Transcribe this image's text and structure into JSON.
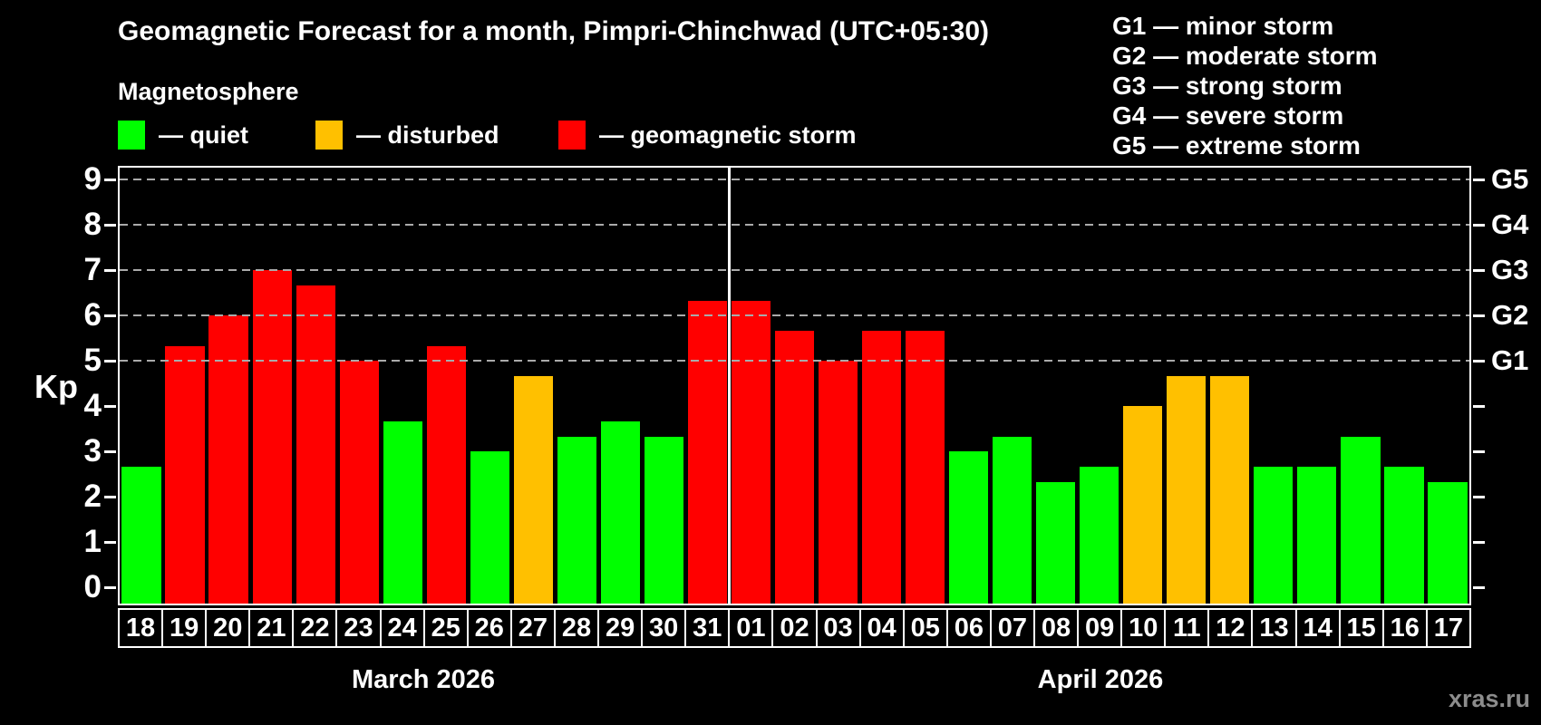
{
  "title": "Geomagnetic Forecast for a month, Pimpri-Chinchwad (UTC+05:30)",
  "subtitle": "Magnetosphere",
  "bar_legend": {
    "items": [
      {
        "status": "quiet",
        "label": "— quiet",
        "color": "#00ff00"
      },
      {
        "status": "disturbed",
        "label": "— disturbed",
        "color": "#ffc000"
      },
      {
        "status": "storm",
        "label": "— geomagnetic storm",
        "color": "#ff0000"
      }
    ]
  },
  "g_legend": {
    "items": [
      {
        "code": "G1",
        "label": "G1 — minor storm"
      },
      {
        "code": "G2",
        "label": "G2 — moderate storm"
      },
      {
        "code": "G3",
        "label": "G3 — strong storm"
      },
      {
        "code": "G4",
        "label": "G4 — severe storm"
      },
      {
        "code": "G5",
        "label": "G5 — extreme storm"
      }
    ]
  },
  "axis": {
    "y_label": "Kp",
    "y_ticks": [
      0,
      1,
      2,
      3,
      4,
      5,
      6,
      7,
      8,
      9
    ],
    "gridlines_kp": [
      5,
      6,
      7,
      8,
      9
    ],
    "right_labels": [
      {
        "kp": 5,
        "label": "G1"
      },
      {
        "kp": 6,
        "label": "G2"
      },
      {
        "kp": 7,
        "label": "G3"
      },
      {
        "kp": 8,
        "label": "G4"
      },
      {
        "kp": 9,
        "label": "G5"
      }
    ]
  },
  "months": [
    {
      "label": "March 2026",
      "days": 14
    },
    {
      "label": "April 2026",
      "days": 17
    }
  ],
  "watermark": "xras.ru",
  "colors": {
    "quiet": "#00ff00",
    "disturbed": "#ffc000",
    "storm": "#ff0000",
    "background": "#000000",
    "foreground": "#ffffff",
    "gridline": "#aaaaaa",
    "watermark": "#8c8c8c"
  },
  "chart_data": {
    "type": "bar",
    "title": "Geomagnetic Forecast for a month, Pimpri-Chinchwad (UTC+05:30)",
    "xlabel": "",
    "ylabel": "Kp",
    "ylim": [
      0,
      9.35
    ],
    "grid": "horizontal dashed lines at Kp 5,6,7,8,9 (G1–G5 levels)",
    "legend_position": "top-left (bar colors), top-right (G-scale)",
    "categories": [
      "18",
      "19",
      "20",
      "21",
      "22",
      "23",
      "24",
      "25",
      "26",
      "27",
      "28",
      "29",
      "30",
      "31",
      "01",
      "02",
      "03",
      "04",
      "05",
      "06",
      "07",
      "08",
      "09",
      "10",
      "11",
      "12",
      "13",
      "14",
      "15",
      "16",
      "17"
    ],
    "values": [
      2.67,
      5.33,
      6.0,
      7.0,
      6.67,
      5.0,
      3.67,
      5.33,
      3.0,
      4.67,
      3.33,
      3.67,
      3.33,
      6.33,
      6.33,
      5.67,
      5.0,
      5.67,
      5.67,
      3.0,
      3.33,
      2.33,
      2.67,
      4.0,
      4.67,
      4.67,
      2.67,
      2.67,
      3.33,
      2.67,
      2.33
    ],
    "statuses": [
      "quiet",
      "storm",
      "storm",
      "storm",
      "storm",
      "storm",
      "quiet",
      "storm",
      "quiet",
      "disturbed",
      "quiet",
      "quiet",
      "quiet",
      "storm",
      "storm",
      "storm",
      "storm",
      "storm",
      "storm",
      "quiet",
      "quiet",
      "quiet",
      "quiet",
      "disturbed",
      "disturbed",
      "disturbed",
      "quiet",
      "quiet",
      "quiet",
      "quiet",
      "quiet"
    ]
  }
}
